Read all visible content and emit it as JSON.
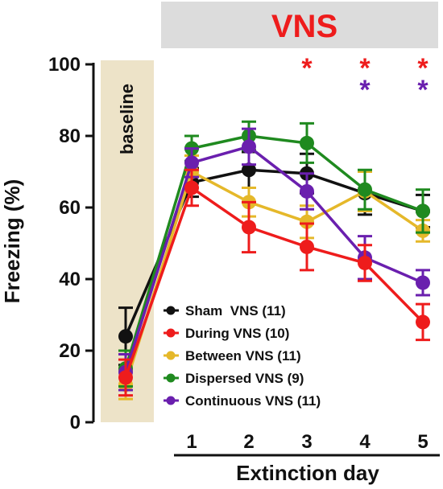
{
  "chart_data": {
    "type": "line",
    "ylabel": "Freezing (%)",
    "xlabel": "Extinction day",
    "ylim": [
      0,
      100
    ],
    "yticks": [
      0,
      20,
      40,
      60,
      80,
      100
    ],
    "categories": [
      "1",
      "2",
      "3",
      "4",
      "5"
    ],
    "treatment_label": "VNS",
    "baseline_label": "baseline",
    "series": [
      {
        "name": "Sham  VNS (11)",
        "color": "#111111",
        "baseline": {
          "value": 24,
          "error": 8
        },
        "values": [
          67,
          70.5,
          69.5,
          64,
          59
        ],
        "errors": [
          4,
          5,
          5.5,
          6,
          4.5
        ]
      },
      {
        "name": "During VNS (10)",
        "color": "#ee1c1c",
        "baseline": {
          "value": 12.5,
          "error": 5
        },
        "values": [
          65.5,
          54.5,
          49,
          44.5,
          28
        ],
        "errors": [
          5,
          7,
          6.5,
          5,
          5
        ]
      },
      {
        "name": "Between VNS (11)",
        "color": "#e5b82a",
        "baseline": {
          "value": 10.5,
          "error": 4
        },
        "values": [
          70,
          61.5,
          56,
          64.5,
          53.5
        ],
        "errors": [
          4.5,
          4,
          4.5,
          5.5,
          3
        ]
      },
      {
        "name": "Dispersed VNS (9)",
        "color": "#1f8a1f",
        "baseline": {
          "value": 15,
          "error": 5
        },
        "values": [
          76.5,
          80,
          78,
          65,
          59
        ],
        "errors": [
          3.5,
          4,
          5.5,
          5.5,
          6
        ]
      },
      {
        "name": "Continuous VNS (11)",
        "color": "#6a1fae",
        "baseline": {
          "value": 14,
          "error": 5
        },
        "values": [
          72.5,
          77,
          64.5,
          46,
          39
        ],
        "errors": [
          4,
          5,
          5,
          6,
          3.5
        ]
      }
    ],
    "significance": [
      {
        "day": "3",
        "stars": [
          {
            "symbol": "*",
            "color": "#ee1c1c"
          }
        ]
      },
      {
        "day": "4",
        "stars": [
          {
            "symbol": "*",
            "color": "#ee1c1c"
          },
          {
            "symbol": "*",
            "color": "#6a1fae"
          }
        ]
      },
      {
        "day": "5",
        "stars": [
          {
            "symbol": "*",
            "color": "#ee1c1c"
          },
          {
            "symbol": "*",
            "color": "#6a1fae"
          }
        ]
      }
    ],
    "legend_position": "bottom-left-inside"
  }
}
